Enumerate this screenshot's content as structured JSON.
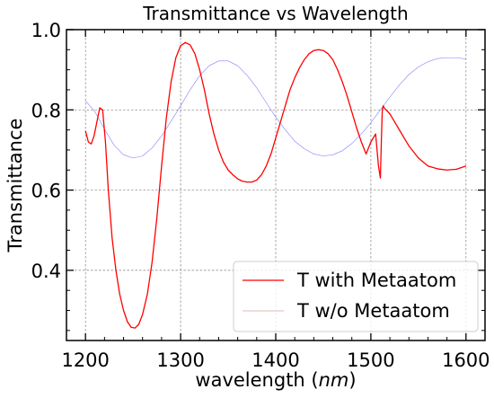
{
  "chart_data": {
    "type": "line",
    "title": "Transmittance vs Wavelength",
    "xlabel_text": "wavelength (",
    "xlabel_unit": "nm",
    "xlabel_close": ")",
    "ylabel": "Transmittance",
    "xlim": [
      1180,
      1620
    ],
    "ylim": [
      0.225,
      1.0
    ],
    "x_ticks": [
      1200,
      1300,
      1400,
      1500,
      1600
    ],
    "x_tick_labels": [
      "1200",
      "1300",
      "1400",
      "1500",
      "1600"
    ],
    "y_ticks": [
      0.4,
      0.6,
      0.8,
      1.0
    ],
    "y_tick_labels": [
      "0.4",
      "0.6",
      "0.8",
      "1.0"
    ],
    "grid": true,
    "legend_position": "bottom-right",
    "series": [
      {
        "name": "T with Metaatom",
        "color": "#ff0000",
        "x": [
          1200,
          1203,
          1206,
          1209,
          1212,
          1215,
          1218,
          1221,
          1224,
          1228,
          1232,
          1236,
          1240,
          1244,
          1248,
          1252,
          1256,
          1260,
          1265,
          1270,
          1275,
          1280,
          1285,
          1290,
          1295,
          1300,
          1305,
          1310,
          1315,
          1320,
          1325,
          1330,
          1335,
          1340,
          1345,
          1350,
          1355,
          1360,
          1365,
          1370,
          1375,
          1380,
          1385,
          1390,
          1395,
          1400,
          1405,
          1410,
          1415,
          1420,
          1425,
          1430,
          1435,
          1440,
          1445,
          1450,
          1455,
          1460,
          1465,
          1470,
          1475,
          1480,
          1485,
          1490,
          1495,
          1500,
          1505,
          1508,
          1510,
          1511,
          1512,
          1513,
          1514,
          1516,
          1520,
          1525,
          1530,
          1540,
          1550,
          1560,
          1570,
          1580,
          1590,
          1600
        ],
        "y": [
          0.748,
          0.72,
          0.715,
          0.735,
          0.77,
          0.805,
          0.8,
          0.72,
          0.6,
          0.48,
          0.4,
          0.34,
          0.3,
          0.272,
          0.258,
          0.256,
          0.265,
          0.29,
          0.34,
          0.42,
          0.53,
          0.66,
          0.78,
          0.87,
          0.93,
          0.96,
          0.968,
          0.962,
          0.94,
          0.9,
          0.85,
          0.79,
          0.74,
          0.7,
          0.67,
          0.65,
          0.638,
          0.628,
          0.622,
          0.62,
          0.62,
          0.625,
          0.638,
          0.66,
          0.69,
          0.73,
          0.77,
          0.81,
          0.85,
          0.88,
          0.905,
          0.925,
          0.94,
          0.948,
          0.95,
          0.948,
          0.94,
          0.925,
          0.9,
          0.87,
          0.835,
          0.795,
          0.755,
          0.72,
          0.69,
          0.72,
          0.74,
          0.66,
          0.63,
          0.72,
          0.8,
          0.81,
          0.805,
          0.8,
          0.79,
          0.77,
          0.75,
          0.71,
          0.68,
          0.66,
          0.653,
          0.65,
          0.652,
          0.66
        ]
      },
      {
        "name": "T w/o Metaatom",
        "color": "#8080ff",
        "x": [
          1200,
          1210,
          1220,
          1230,
          1240,
          1250,
          1260,
          1270,
          1280,
          1290,
          1300,
          1310,
          1320,
          1330,
          1340,
          1350,
          1360,
          1370,
          1380,
          1390,
          1400,
          1410,
          1420,
          1430,
          1440,
          1450,
          1460,
          1470,
          1480,
          1490,
          1500,
          1510,
          1520,
          1530,
          1540,
          1550,
          1560,
          1570,
          1580,
          1590,
          1600
        ],
        "y": [
          0.823,
          0.795,
          0.752,
          0.712,
          0.688,
          0.68,
          0.685,
          0.705,
          0.735,
          0.772,
          0.81,
          0.85,
          0.885,
          0.91,
          0.922,
          0.922,
          0.91,
          0.886,
          0.855,
          0.818,
          0.782,
          0.75,
          0.722,
          0.703,
          0.69,
          0.685,
          0.688,
          0.698,
          0.716,
          0.74,
          0.768,
          0.8,
          0.832,
          0.862,
          0.888,
          0.907,
          0.92,
          0.928,
          0.93,
          0.93,
          0.927
        ]
      }
    ]
  }
}
